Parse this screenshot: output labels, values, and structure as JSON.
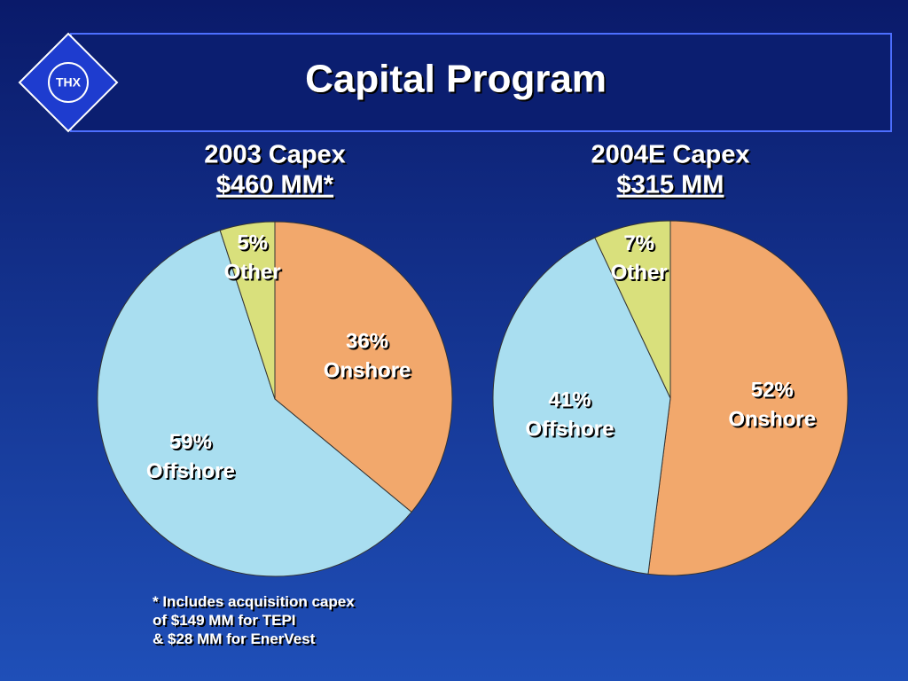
{
  "title": "Capital Program",
  "logo": "THX",
  "footnote": [
    "* Includes acquisition capex",
    "of $149 MM for TEPI",
    "& $28 MM for EnerVest"
  ],
  "chart_data": [
    {
      "type": "pie",
      "title": "2003 Capex",
      "subtitle": "$460 MM*",
      "categories": [
        "Onshore",
        "Offshore",
        "Other"
      ],
      "values": [
        36,
        59,
        5
      ],
      "value_labels": [
        "36%",
        "59%",
        "5%"
      ],
      "colors": [
        "#f2a86c",
        "#a9def0",
        "#d9e07c"
      ]
    },
    {
      "type": "pie",
      "title": "2004E Capex",
      "subtitle": "$315 MM",
      "categories": [
        "Onshore",
        "Offshore",
        "Other"
      ],
      "values": [
        52,
        41,
        7
      ],
      "value_labels": [
        "52%",
        "41%",
        "7%"
      ],
      "colors": [
        "#f2a86c",
        "#a9def0",
        "#d9e07c"
      ]
    }
  ]
}
